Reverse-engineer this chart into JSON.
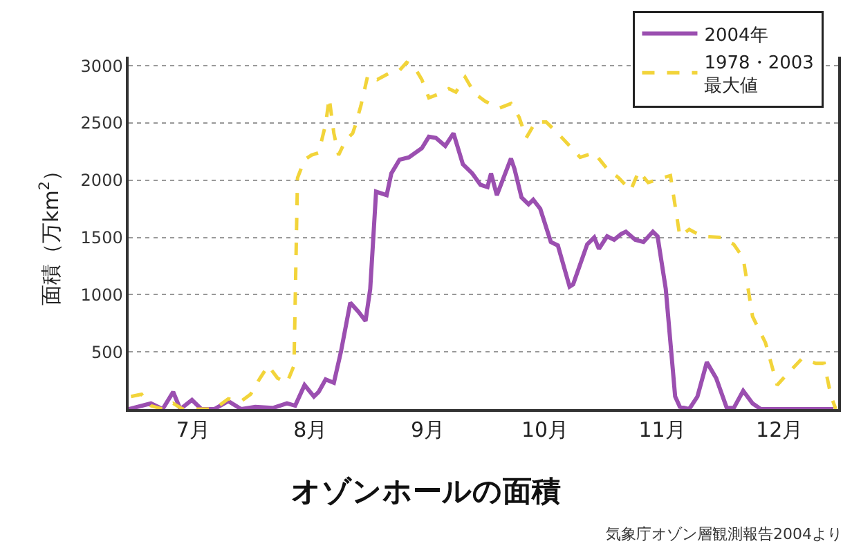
{
  "chart_data": {
    "type": "line",
    "title": "オゾンホールの面積",
    "ylabel": "面積（万km$^{2}$）",
    "annotations": [
      "気象庁オゾン層観測報告2004より"
    ],
    "xlim": [
      6.45,
      12.5
    ],
    "xticks": [
      {
        "value": 7,
        "label": "7月"
      },
      {
        "value": 8,
        "label": "8月"
      },
      {
        "value": 9,
        "label": "9月"
      },
      {
        "value": 10,
        "label": "10月"
      },
      {
        "value": 11,
        "label": "11月"
      },
      {
        "value": 12,
        "label": "12月"
      }
    ],
    "ylim": [
      0,
      3080
    ],
    "yticks": [
      500,
      1000,
      1500,
      2000,
      2500,
      3000
    ],
    "grid": "y",
    "legend": "top right",
    "marker": "none",
    "series": [
      {
        "name": "2004年",
        "color": "#9b4fb0",
        "line_style": "solid",
        "x": [
          6.45,
          6.64,
          6.74,
          6.83,
          6.89,
          6.99,
          7.07,
          7.18,
          7.3,
          7.41,
          7.53,
          7.68,
          7.8,
          7.87,
          7.95,
          8.03,
          8.07,
          8.13,
          8.2,
          8.26,
          8.34,
          8.41,
          8.47,
          8.51,
          8.56,
          8.65,
          8.69,
          8.76,
          8.84,
          8.95,
          9.01,
          9.07,
          9.15,
          9.22,
          9.3,
          9.38,
          9.45,
          9.51,
          9.54,
          9.59,
          9.71,
          9.74,
          9.8,
          9.86,
          9.9,
          9.96,
          10.05,
          10.11,
          10.21,
          10.24,
          10.36,
          10.42,
          10.46,
          10.53,
          10.59,
          10.65,
          10.69,
          10.77,
          10.84,
          10.92,
          10.96,
          11.03,
          11.11,
          11.15,
          11.23,
          11.3,
          11.38,
          11.46,
          11.55,
          11.61,
          11.69,
          11.77,
          11.84,
          12.46
        ],
        "values": [
          0,
          50,
          0,
          150,
          0,
          80,
          0,
          0,
          70,
          0,
          20,
          10,
          50,
          30,
          210,
          110,
          150,
          260,
          230,
          500,
          930,
          850,
          770,
          1050,
          1900,
          1870,
          2060,
          2180,
          2200,
          2280,
          2380,
          2370,
          2300,
          2410,
          2140,
          2060,
          1960,
          1940,
          2060,
          1870,
          2190,
          2100,
          1850,
          1790,
          1830,
          1750,
          1460,
          1430,
          1070,
          1090,
          1440,
          1500,
          1400,
          1510,
          1480,
          1530,
          1550,
          1480,
          1460,
          1550,
          1510,
          1050,
          110,
          20,
          0,
          110,
          410,
          270,
          10,
          10,
          160,
          50,
          0,
          0
        ]
      },
      {
        "name": "1978・2003\n最大値",
        "color": "#f2d43a",
        "line_style": "dashed",
        "x": [
          6.47,
          6.56,
          6.64,
          6.74,
          6.83,
          6.91,
          7.03,
          7.18,
          7.3,
          7.41,
          7.49,
          7.57,
          7.64,
          7.72,
          7.8,
          7.86,
          7.89,
          7.95,
          8.01,
          8.07,
          8.13,
          8.16,
          8.2,
          8.24,
          8.3,
          8.36,
          8.38,
          8.43,
          8.49,
          8.57,
          8.68,
          8.76,
          8.82,
          8.88,
          8.95,
          9.01,
          9.11,
          9.18,
          9.24,
          9.32,
          9.4,
          9.49,
          9.61,
          9.71,
          9.78,
          9.84,
          9.92,
          10.01,
          10.11,
          10.21,
          10.3,
          10.42,
          10.53,
          10.63,
          10.73,
          10.8,
          10.88,
          11.0,
          11.07,
          11.15,
          11.23,
          11.34,
          11.5,
          11.61,
          11.69,
          11.77,
          11.88,
          11.98,
          12.06,
          12.19,
          12.31,
          12.38,
          12.44,
          12.48
        ],
        "values": [
          110,
          130,
          30,
          0,
          50,
          0,
          0,
          0,
          90,
          70,
          130,
          270,
          380,
          270,
          230,
          380,
          2020,
          2180,
          2220,
          2240,
          2490,
          2720,
          2410,
          2220,
          2350,
          2410,
          2470,
          2650,
          2920,
          2880,
          2940,
          2960,
          3030,
          3000,
          2880,
          2720,
          2760,
          2800,
          2770,
          2900,
          2760,
          2690,
          2630,
          2670,
          2550,
          2370,
          2510,
          2510,
          2410,
          2300,
          2200,
          2240,
          2100,
          2020,
          1910,
          2080,
          1980,
          2020,
          2040,
          1510,
          1570,
          1510,
          1500,
          1440,
          1320,
          810,
          580,
          210,
          300,
          440,
          400,
          400,
          110,
          0
        ]
      }
    ]
  }
}
